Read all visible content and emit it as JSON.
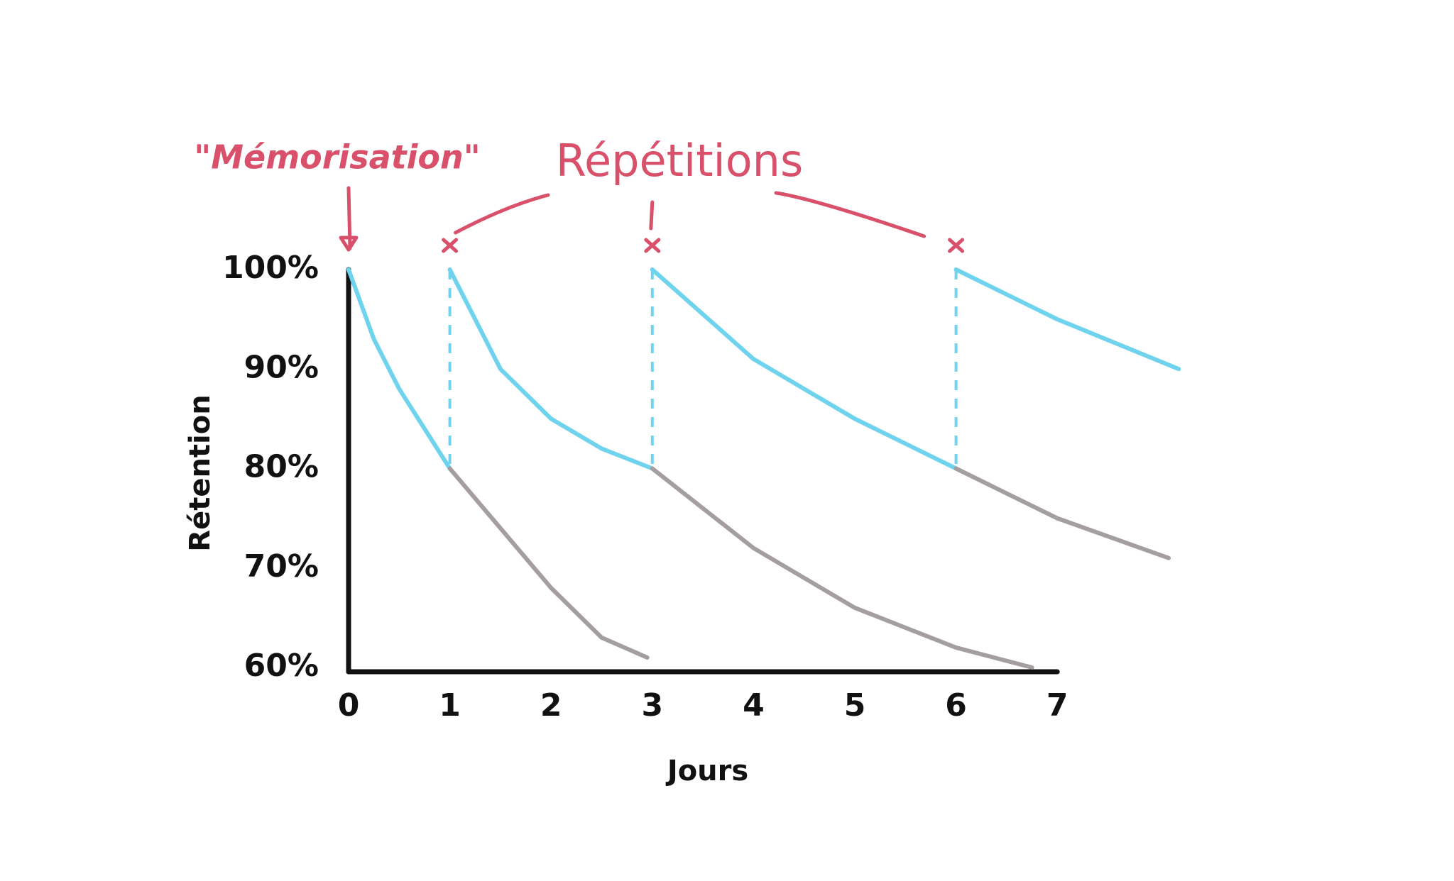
{
  "chart_data": {
    "type": "line",
    "annotations": [
      "\"Mémorisation\"",
      "Répétitions"
    ],
    "xlabel": "Jours",
    "ylabel": "Rétention",
    "xlim": [
      0,
      7
    ],
    "ylim": [
      60,
      100
    ],
    "xticks": [
      0,
      1,
      2,
      3,
      4,
      5,
      6,
      7
    ],
    "yticks": [
      {
        "value": 60,
        "label": "60%"
      },
      {
        "value": 70,
        "label": "70%"
      },
      {
        "value": 80,
        "label": "80%"
      },
      {
        "value": 90,
        "label": "90%"
      },
      {
        "value": 100,
        "label": "100%"
      }
    ],
    "memorisation_x": 0,
    "repetitions_x": [
      1,
      3,
      6
    ],
    "series": [
      {
        "color": "#6fd3ee",
        "x": [
          0,
          0.25,
          0.5,
          0.75,
          1
        ],
        "values": [
          100,
          93,
          88,
          84,
          80
        ]
      },
      {
        "color": "#a59e9e",
        "x": [
          1,
          1.5,
          2,
          2.5,
          2.95
        ],
        "values": [
          80,
          74,
          68,
          63,
          61
        ]
      },
      {
        "color": "#6fd3ee",
        "x": [
          1,
          1.5,
          2,
          2.5,
          3
        ],
        "values": [
          100,
          90,
          85,
          82,
          80
        ]
      },
      {
        "color": "#a59e9e",
        "x": [
          3,
          4,
          5,
          6,
          6.75
        ],
        "values": [
          80,
          72,
          66,
          62,
          60
        ]
      },
      {
        "color": "#6fd3ee",
        "x": [
          3,
          4,
          5,
          6
        ],
        "values": [
          100,
          91,
          85,
          80
        ]
      },
      {
        "color": "#a59e9e",
        "x": [
          6,
          7,
          8.1
        ],
        "values": [
          80,
          75,
          71
        ]
      },
      {
        "color": "#6fd3ee",
        "x": [
          6,
          7,
          8.2
        ],
        "values": [
          100,
          95,
          90
        ]
      }
    ]
  }
}
